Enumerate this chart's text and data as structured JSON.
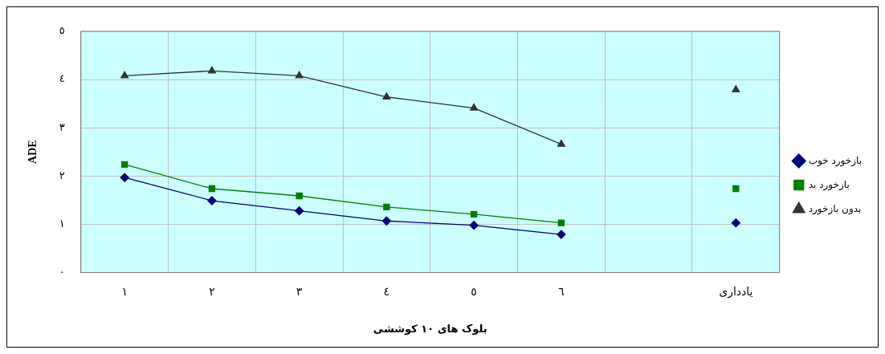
{
  "chart_data": {
    "type": "line",
    "xlabel": "بلوک های ١٠ کوششی",
    "ylabel": "ADE",
    "categories": [
      "١",
      "٢",
      "٣",
      "٤",
      "٥",
      "٦",
      null,
      "یادداری"
    ],
    "series": [
      {
        "name": "بازخورد خوب",
        "color": "#000080",
        "marker": "diamond",
        "values": [
          1.97,
          1.49,
          1.28,
          1.07,
          0.98,
          0.79,
          null,
          1.03
        ]
      },
      {
        "name": "بازخورد بد",
        "color": "#008000",
        "marker": "square",
        "values": [
          2.24,
          1.74,
          1.59,
          1.36,
          1.21,
          1.03,
          null,
          1.74
        ]
      },
      {
        "name": "بدون بازخورد",
        "color": "#333333",
        "marker": "triangle",
        "values": [
          4.08,
          4.18,
          4.08,
          3.64,
          3.41,
          2.66,
          null,
          3.79
        ]
      }
    ],
    "ylim": [
      0,
      5
    ],
    "yticks": [
      {
        "value": 0,
        "label": "٠"
      },
      {
        "value": 1,
        "label": "١"
      },
      {
        "value": 2,
        "label": "٢"
      },
      {
        "value": 3,
        "label": "٣"
      },
      {
        "value": 4,
        "label": "٤"
      },
      {
        "value": 5,
        "label": "٥"
      }
    ],
    "grid": true,
    "legend": "right",
    "line_style": "solid"
  }
}
